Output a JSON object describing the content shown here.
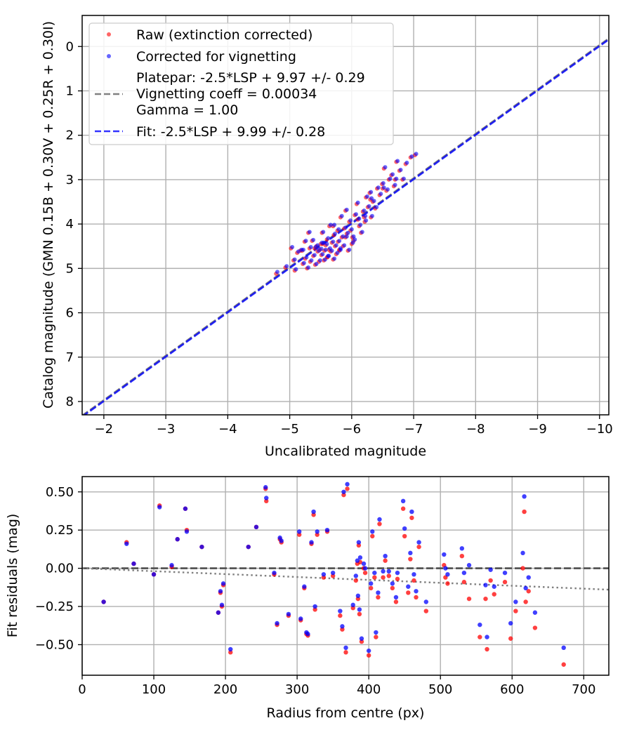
{
  "chart_data": [
    {
      "type": "scatter",
      "xlabel": "Uncalibrated magnitude",
      "ylabel": "Catalog magnitude (GMN 0.15B + 0.30V + 0.25R + 0.30I)",
      "xlim": [
        -1.65,
        -10.15
      ],
      "ylim": [
        8.3,
        -0.7
      ],
      "x_inverted": true,
      "y_inverted": true,
      "grid": true,
      "legend_position": "upper-left",
      "xticks": [
        -2,
        -3,
        -4,
        -5,
        -6,
        -7,
        -8,
        -9,
        -10
      ],
      "xtick_labels": [
        "−2",
        "−3",
        "−4",
        "−5",
        "−6",
        "−7",
        "−8",
        "−9",
        "−10"
      ],
      "yticks": [
        0,
        1,
        2,
        3,
        4,
        5,
        6,
        7,
        8
      ],
      "ytick_labels": [
        "0",
        "1",
        "2",
        "3",
        "4",
        "5",
        "6",
        "7",
        "8"
      ],
      "legend": [
        {
          "label": "Raw (extinction corrected)",
          "kind": "point",
          "color": "#ff0000"
        },
        {
          "label": "Corrected for vignetting",
          "kind": "point",
          "color": "#0000ff"
        },
        {
          "label": [
            "Platepar: -2.5*LSP + 9.97 +/- 0.29",
            "Vignetting coeff = 0.00034",
            "Gamma = 1.00"
          ],
          "kind": "dashed-line",
          "color": "#808080"
        },
        {
          "label": "Fit: -2.5*LSP + 9.99 +/- 0.28",
          "kind": "dashed-line",
          "color": "#0000ff"
        }
      ],
      "lines": [
        {
          "name": "platepar",
          "slope": 1,
          "intercept": 9.97,
          "color": "#808080"
        },
        {
          "name": "fit",
          "slope": 1,
          "intercept": 9.99,
          "color": "#0000ff"
        }
      ],
      "series": [
        {
          "name": "Raw (extinction corrected)",
          "color": "#ff0000",
          "x": [
            -4.78,
            -4.93,
            -5.02,
            -5.06,
            -5.08,
            -5.12,
            -5.17,
            -5.21,
            -5.24,
            -5.25,
            -5.28,
            -5.32,
            -5.33,
            -5.36,
            -5.38,
            -5.41,
            -5.43,
            -5.45,
            -5.47,
            -5.49,
            -5.51,
            -5.52,
            -5.53,
            -5.55,
            -5.56,
            -5.58,
            -5.6,
            -5.61,
            -5.63,
            -5.64,
            -5.66,
            -5.68,
            -5.7,
            -5.71,
            -5.73,
            -5.75,
            -5.77,
            -5.78,
            -5.8,
            -5.82,
            -5.84,
            -5.86,
            -5.88,
            -5.9,
            -5.92,
            -5.94,
            -5.96,
            -5.98,
            -6.01,
            -6.03,
            -6.05,
            -6.08,
            -6.12,
            -6.15,
            -6.18,
            -6.21,
            -6.23,
            -6.26,
            -6.29,
            -6.31,
            -6.34,
            -6.38,
            -6.41,
            -6.45,
            -6.49,
            -6.52,
            -6.56,
            -6.6,
            -6.64,
            -6.68,
            -6.72,
            -6.77,
            -6.82,
            -6.87,
            -6.95,
            -7.02,
            -5.3,
            -5.5,
            -5.7,
            -5.9,
            -6.1,
            -5.4,
            -5.6,
            -5.8,
            -6.0,
            -6.2,
            -5.2,
            -6.3,
            -6.5,
            -6.7
          ],
          "y": [
            5.12,
            4.98,
            4.55,
            4.82,
            5.05,
            4.65,
            4.6,
            4.9,
            4.4,
            4.78,
            5.0,
            4.55,
            4.85,
            4.38,
            4.72,
            4.92,
            4.5,
            4.62,
            4.85,
            4.58,
            4.7,
            4.2,
            4.45,
            4.82,
            4.6,
            4.48,
            4.35,
            4.75,
            4.58,
            4.05,
            4.62,
            4.42,
            4.8,
            4.25,
            4.5,
            4.68,
            4.15,
            4.4,
            4.58,
            3.85,
            4.3,
            4.5,
            4.1,
            3.7,
            4.22,
            4.6,
            3.95,
            4.15,
            4.3,
            4.38,
            3.8,
            3.55,
            4.05,
            4.2,
            3.72,
            3.95,
            3.4,
            3.62,
            3.3,
            3.85,
            3.5,
            3.65,
            3.2,
            3.35,
            3.1,
            2.75,
            3.25,
            3.0,
            2.9,
            3.15,
            2.6,
            2.8,
            3.0,
            2.65,
            2.5,
            2.45,
            4.2,
            4.45,
            4.05,
            4.3,
            3.9,
            4.55,
            4.75,
            4.6,
            4.45,
            3.85,
            4.6,
            3.45,
            3.2,
            3.0
          ]
        },
        {
          "name": "Corrected for vignetting",
          "color": "#0000ff",
          "x": [
            -4.8,
            -4.95,
            -5.04,
            -5.08,
            -5.1,
            -5.14,
            -5.19,
            -5.23,
            -5.26,
            -5.27,
            -5.3,
            -5.34,
            -5.35,
            -5.38,
            -5.4,
            -5.43,
            -5.45,
            -5.47,
            -5.49,
            -5.51,
            -5.53,
            -5.54,
            -5.55,
            -5.57,
            -5.58,
            -5.6,
            -5.62,
            -5.63,
            -5.65,
            -5.66,
            -5.68,
            -5.7,
            -5.72,
            -5.73,
            -5.75,
            -5.77,
            -5.79,
            -5.8,
            -5.82,
            -5.84,
            -5.86,
            -5.88,
            -5.9,
            -5.92,
            -5.94,
            -5.96,
            -5.98,
            -6.0,
            -6.03,
            -6.05,
            -6.07,
            -6.1,
            -6.14,
            -6.17,
            -6.2,
            -6.23,
            -6.25,
            -6.28,
            -6.31,
            -6.33,
            -6.36,
            -6.4,
            -6.43,
            -6.47,
            -6.51,
            -6.54,
            -6.58,
            -6.62,
            -6.66,
            -6.7,
            -6.74,
            -6.79,
            -6.84,
            -6.89,
            -6.97,
            -7.04,
            -5.32,
            -5.52,
            -5.72,
            -5.92,
            -6.12,
            -5.42,
            -5.62,
            -5.82,
            -6.02,
            -6.22,
            -5.22,
            -6.32,
            -6.52,
            -6.72
          ],
          "y": [
            5.08,
            4.95,
            4.52,
            4.8,
            5.02,
            4.62,
            4.58,
            4.88,
            4.38,
            4.75,
            4.98,
            4.52,
            4.82,
            4.36,
            4.7,
            4.9,
            4.48,
            4.6,
            4.82,
            4.56,
            4.68,
            4.18,
            4.42,
            4.8,
            4.58,
            4.45,
            4.32,
            4.72,
            4.55,
            4.02,
            4.6,
            4.4,
            4.78,
            4.22,
            4.48,
            4.65,
            4.12,
            4.38,
            4.55,
            3.82,
            4.28,
            4.48,
            4.08,
            3.68,
            4.2,
            4.58,
            3.92,
            4.12,
            4.28,
            4.35,
            3.78,
            3.52,
            4.02,
            4.18,
            3.7,
            3.92,
            3.38,
            3.6,
            3.28,
            3.82,
            3.48,
            3.62,
            3.18,
            3.32,
            3.08,
            2.72,
            3.22,
            2.98,
            2.88,
            3.12,
            2.58,
            2.78,
            2.98,
            2.62,
            2.48,
            2.42,
            4.18,
            4.42,
            4.02,
            4.28,
            3.88,
            4.52,
            4.72,
            4.58,
            4.42,
            3.82,
            4.58,
            3.42,
            3.18,
            2.98
          ]
        }
      ]
    },
    {
      "type": "scatter",
      "xlabel": "Radius from centre (px)",
      "ylabel": "Fit residuals (mag)",
      "xlim": [
        0,
        735
      ],
      "ylim": [
        -0.7,
        0.6
      ],
      "grid": true,
      "xticks": [
        0,
        100,
        200,
        300,
        400,
        500,
        600,
        700
      ],
      "xtick_labels": [
        "0",
        "100",
        "200",
        "300",
        "400",
        "500",
        "600",
        "700"
      ],
      "yticks": [
        0.5,
        0.25,
        0.0,
        -0.25,
        -0.5
      ],
      "ytick_labels": [
        "0.50",
        "0.25",
        "0.00",
        "−0.25",
        "−0.50"
      ],
      "lines": [
        {
          "name": "zero",
          "style": "dashed",
          "color": "#555555",
          "points": [
            [
              0,
              0
            ],
            [
              735,
              0
            ]
          ]
        },
        {
          "name": "vignetting",
          "style": "dotted",
          "color": "#808080",
          "points": [
            [
              0,
              0
            ],
            [
              735,
              -0.14
            ]
          ]
        }
      ],
      "series": [
        {
          "name": "Raw",
          "color": "#ff0000",
          "x": [
            30,
            62,
            72,
            100,
            108,
            125,
            133,
            144,
            146,
            167,
            190,
            193,
            195,
            197,
            207,
            232,
            243,
            256,
            257,
            268,
            272,
            276,
            278,
            288,
            303,
            305,
            310,
            313,
            315,
            320,
            323,
            325,
            328,
            337,
            342,
            350,
            360,
            363,
            365,
            368,
            370,
            378,
            382,
            384,
            385,
            386,
            387,
            388,
            390,
            393,
            395,
            400,
            403,
            405,
            408,
            410,
            413,
            415,
            420,
            423,
            428,
            433,
            438,
            440,
            448,
            450,
            455,
            458,
            460,
            463,
            466,
            470,
            480,
            505,
            507,
            510,
            530,
            533,
            540,
            555,
            563,
            565,
            570,
            575,
            590,
            598,
            605,
            615,
            617,
            619,
            623,
            632,
            672
          ],
          "y": [
            -0.22,
            0.17,
            0.03,
            -0.04,
            0.41,
            0.01,
            0.19,
            0.39,
            0.25,
            0.14,
            -0.29,
            -0.16,
            -0.25,
            -0.11,
            -0.55,
            0.14,
            0.27,
            0.52,
            0.44,
            -0.04,
            -0.37,
            0.19,
            0.17,
            -0.31,
            0.22,
            -0.34,
            -0.13,
            -0.43,
            -0.44,
            0.16,
            0.35,
            -0.27,
            0.22,
            -0.06,
            0.24,
            -0.05,
            -0.31,
            -0.4,
            0.48,
            -0.55,
            0.52,
            -0.26,
            -0.08,
            0.03,
            -0.2,
            0.15,
            -0.3,
            0.04,
            -0.48,
            0.0,
            -0.03,
            -0.57,
            -0.13,
            0.21,
            -0.06,
            -0.45,
            -0.19,
            0.29,
            -0.06,
            0.05,
            -0.05,
            -0.13,
            -0.22,
            -0.07,
            0.39,
            0.21,
            -0.16,
            0.06,
            0.33,
            -0.08,
            -0.19,
            0.14,
            -0.28,
            0.02,
            -0.06,
            -0.1,
            0.08,
            -0.09,
            -0.2,
            -0.45,
            -0.2,
            -0.53,
            -0.08,
            -0.17,
            -0.09,
            -0.46,
            -0.28,
            0.0,
            0.37,
            -0.22,
            -0.15,
            -0.39,
            -0.63
          ]
        },
        {
          "name": "Corrected",
          "color": "#0000ff",
          "x": [
            30,
            62,
            72,
            100,
            108,
            125,
            133,
            144,
            146,
            167,
            190,
            193,
            195,
            197,
            207,
            232,
            243,
            256,
            257,
            268,
            272,
            276,
            278,
            288,
            303,
            305,
            310,
            313,
            315,
            320,
            323,
            325,
            328,
            337,
            342,
            350,
            360,
            363,
            365,
            368,
            370,
            378,
            382,
            384,
            385,
            386,
            387,
            388,
            390,
            393,
            395,
            400,
            403,
            405,
            408,
            410,
            413,
            415,
            420,
            423,
            428,
            433,
            438,
            440,
            448,
            450,
            455,
            458,
            460,
            463,
            466,
            470,
            480,
            505,
            507,
            510,
            530,
            533,
            540,
            555,
            563,
            565,
            570,
            575,
            590,
            598,
            605,
            615,
            617,
            619,
            623,
            632,
            672
          ],
          "y": [
            -0.22,
            0.16,
            0.03,
            -0.04,
            0.4,
            0.02,
            0.19,
            0.39,
            0.24,
            0.14,
            -0.29,
            -0.15,
            -0.24,
            -0.1,
            -0.53,
            0.14,
            0.27,
            0.53,
            0.46,
            -0.03,
            -0.36,
            0.2,
            0.18,
            -0.3,
            0.24,
            -0.33,
            -0.12,
            -0.42,
            -0.43,
            0.17,
            0.37,
            -0.25,
            0.24,
            -0.04,
            0.25,
            -0.03,
            -0.28,
            -0.38,
            0.5,
            -0.52,
            0.55,
            -0.24,
            -0.05,
            0.05,
            -0.18,
            0.17,
            -0.27,
            0.07,
            -0.46,
            0.03,
            0.0,
            -0.54,
            -0.1,
            0.24,
            -0.03,
            -0.42,
            -0.16,
            0.32,
            -0.02,
            0.08,
            -0.02,
            -0.1,
            -0.19,
            -0.03,
            0.44,
            0.26,
            -0.12,
            0.1,
            0.37,
            -0.04,
            -0.15,
            0.17,
            -0.22,
            0.09,
            0.0,
            -0.04,
            0.13,
            -0.03,
            0.02,
            -0.37,
            -0.11,
            -0.45,
            -0.01,
            -0.12,
            -0.03,
            -0.36,
            -0.22,
            0.1,
            0.47,
            -0.13,
            -0.06,
            -0.29,
            -0.52
          ]
        }
      ]
    }
  ]
}
